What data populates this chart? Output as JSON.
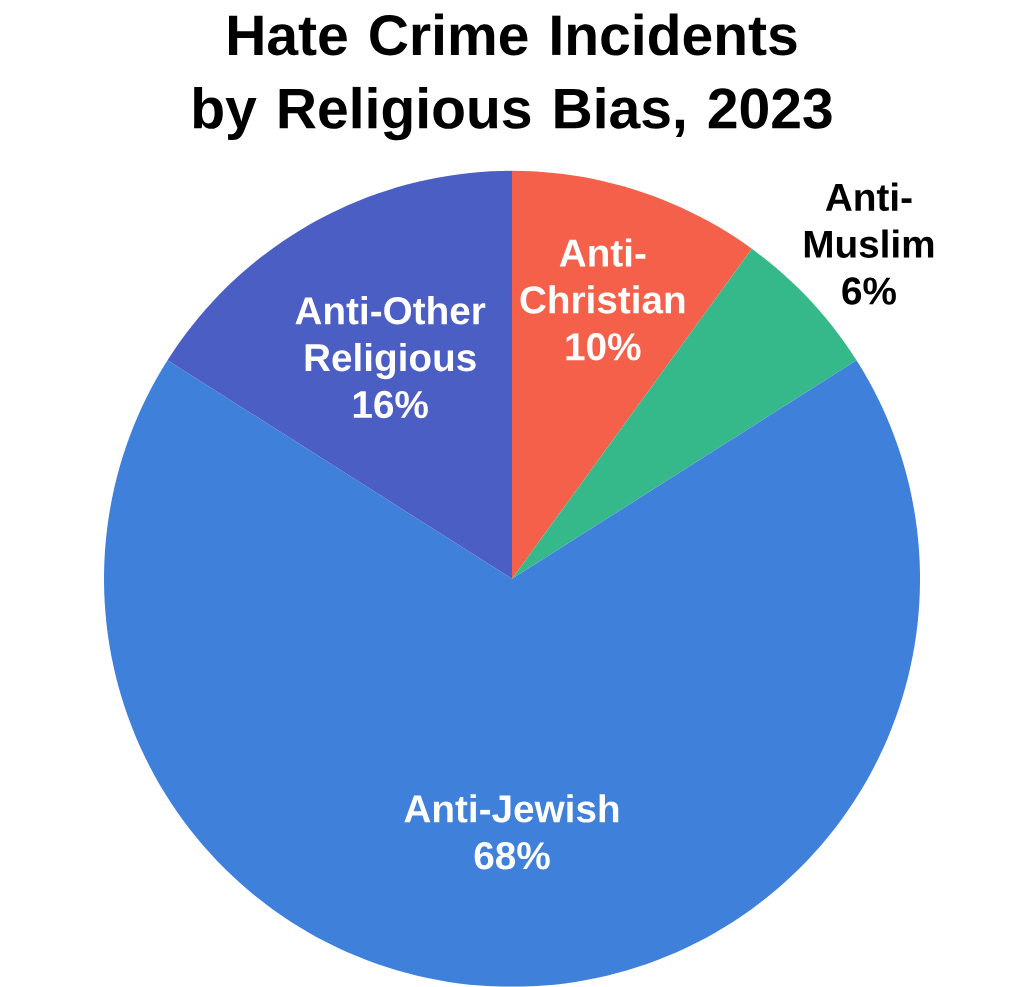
{
  "chart_data": {
    "type": "pie",
    "title": "Hate Crime Incidents by Religious Bias, 2023",
    "categories": [
      "Anti-Christian",
      "Anti-Muslim",
      "Anti-Jewish",
      "Anti-Other Religious"
    ],
    "values": [
      10,
      6,
      68,
      16
    ],
    "colors": [
      "#f4604a",
      "#35b98a",
      "#3f80db",
      "#4a5ec4"
    ],
    "value_labels": [
      "10%",
      "6%",
      "68%",
      "16%"
    ]
  }
}
